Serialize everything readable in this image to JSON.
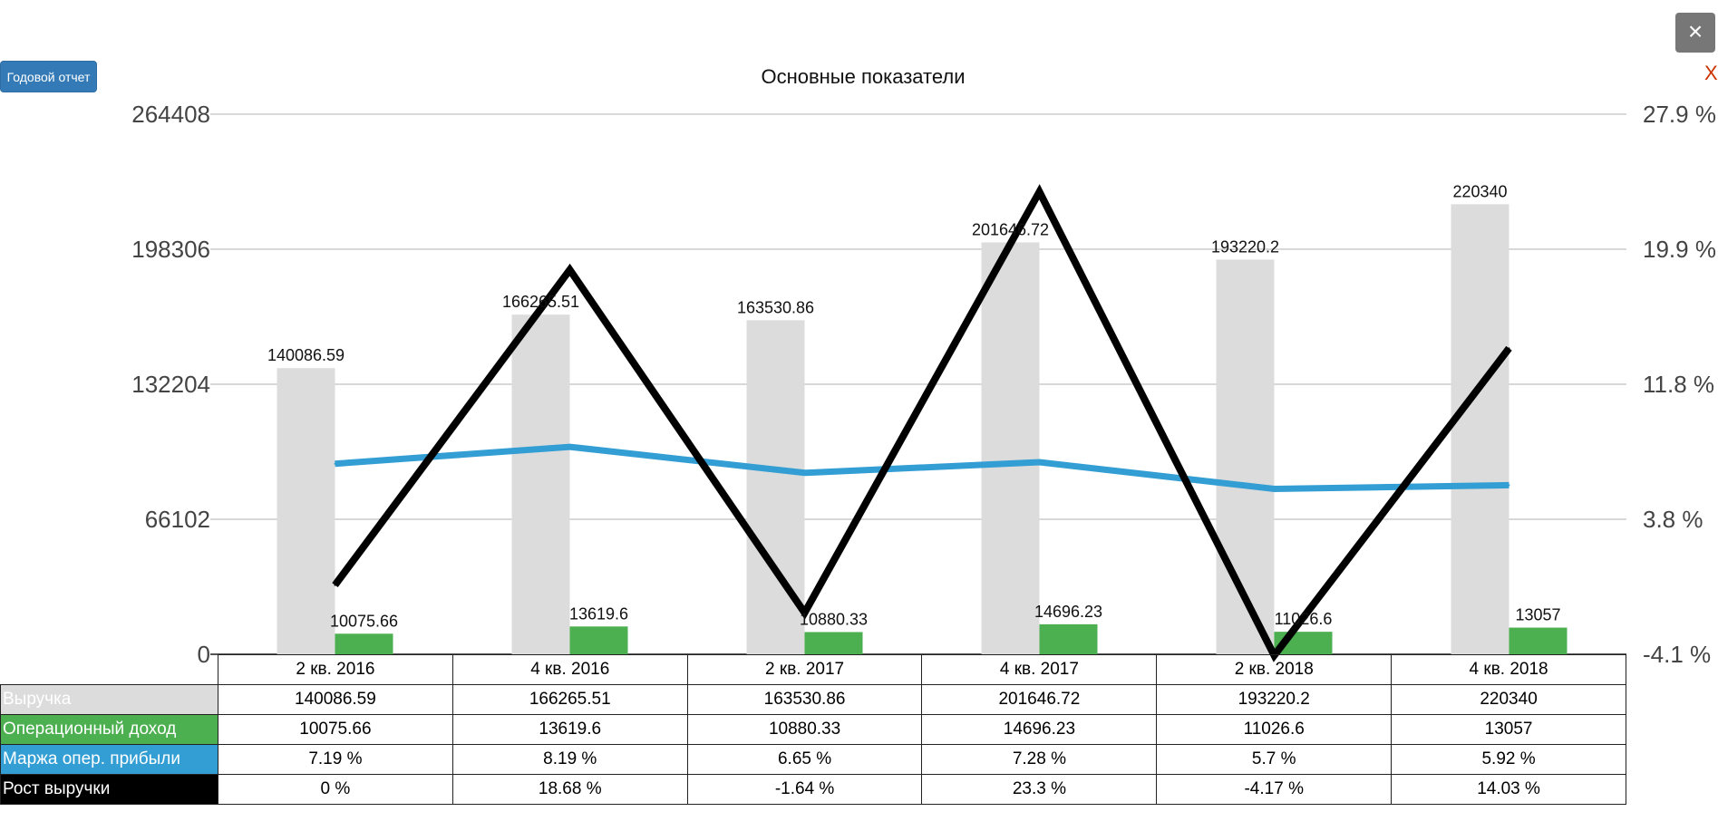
{
  "annual_report_button": "Годовой отчет",
  "close_button": "×",
  "edge_mark": "X",
  "chart_data": {
    "type": "bar",
    "title": "Основные показатели",
    "categories": [
      "2 кв. 2016",
      "4 кв. 2016",
      "2 кв. 2017",
      "4 кв. 2017",
      "2 кв. 2018",
      "4 кв. 2018"
    ],
    "ylim": [
      0,
      264408
    ],
    "y_ticks": [
      "264408",
      "198306",
      "132204",
      "66102",
      "0"
    ],
    "y2lim": [
      -4.1,
      27.9
    ],
    "y2_ticks": [
      "27.9 %",
      "19.9 %",
      "11.8 %",
      "3.8 %",
      "-4.1 %"
    ],
    "grid": true,
    "series": [
      {
        "name": "Выручка",
        "kind": "bar",
        "axis": "left",
        "color": "#dcdcdc",
        "label_color": "#dcdcdc",
        "values": [
          140086.59,
          166265.51,
          163530.86,
          201646.72,
          193220.2,
          220340
        ],
        "labels": [
          "140086.59",
          "166265.51",
          "163530.86",
          "201646.72",
          "193220.2",
          "220340"
        ]
      },
      {
        "name": "Операционный доход",
        "kind": "bar",
        "axis": "left",
        "color": "#4caf50",
        "label_color": "#4caf50",
        "values": [
          10075.66,
          13619.6,
          10880.33,
          14696.23,
          11026.6,
          13057
        ],
        "labels": [
          "10075.66",
          "13619.6",
          "10880.33",
          "14696.23",
          "11026.6",
          "13057"
        ]
      },
      {
        "name": "Маржа опер. прибыли",
        "kind": "line",
        "axis": "right",
        "color": "#339ed4",
        "label_color": "#339ed4",
        "values": [
          7.19,
          8.19,
          6.65,
          7.28,
          5.7,
          5.92
        ],
        "labels": [
          "7.19 %",
          "8.19 %",
          "6.65 %",
          "7.28 %",
          "5.7 %",
          "5.92 %"
        ]
      },
      {
        "name": "Рост выручки",
        "kind": "line",
        "axis": "right",
        "color": "#000000",
        "label_color": "#000000",
        "values": [
          0,
          18.68,
          -1.64,
          23.3,
          -4.17,
          14.03
        ],
        "labels": [
          "0 %",
          "18.68 %",
          "-1.64 %",
          "23.3 %",
          "-4.17 %",
          "14.03 %"
        ]
      }
    ]
  }
}
